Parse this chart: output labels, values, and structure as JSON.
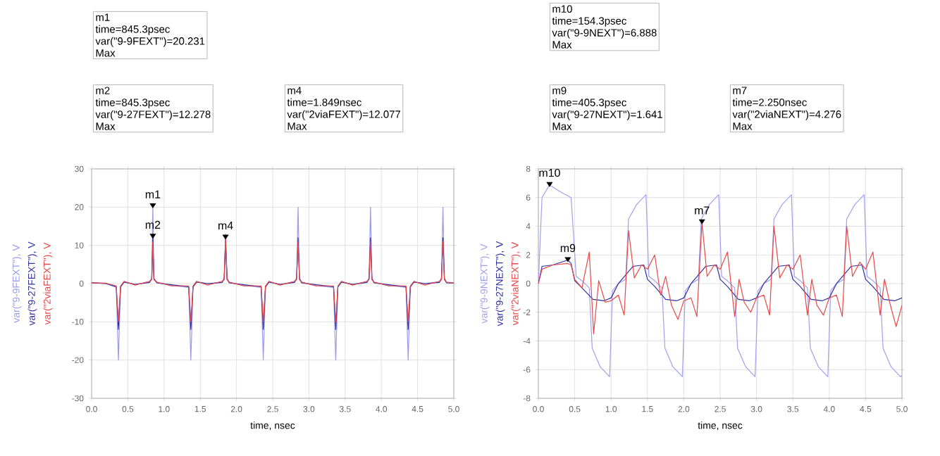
{
  "chart_data": [
    {
      "type": "line",
      "xlabel": "time, nsec",
      "xlim": [
        0,
        5
      ],
      "ylim": [
        -30,
        30
      ],
      "grid": true,
      "xticks": [
        {
          "value": 0,
          "label": "0.0"
        },
        {
          "value": 0.5,
          "label": "0.5"
        },
        {
          "value": 1,
          "label": "1.0"
        },
        {
          "value": 1.5,
          "label": "1.5"
        },
        {
          "value": 2,
          "label": "2.0"
        },
        {
          "value": 2.5,
          "label": "2.5"
        },
        {
          "value": 3,
          "label": "3.0"
        },
        {
          "value": 3.5,
          "label": "3.5"
        },
        {
          "value": 4,
          "label": "4.0"
        },
        {
          "value": 4.5,
          "label": "4.5"
        },
        {
          "value": 5,
          "label": "5.0"
        }
      ],
      "yticks": [
        -30,
        -20,
        -10,
        0,
        10,
        20,
        30
      ],
      "x": [
        0,
        0.2,
        0.34,
        0.37,
        0.4,
        0.45,
        0.6,
        0.8,
        0.83,
        0.8453,
        0.86,
        0.9,
        1.1,
        1.34,
        1.37,
        1.4,
        1.45,
        1.6,
        1.8,
        1.83,
        1.849,
        1.87,
        1.9,
        2.1,
        2.34,
        2.37,
        2.4,
        2.45,
        2.6,
        2.8,
        2.83,
        2.85,
        2.87,
        2.9,
        3.1,
        3.34,
        3.37,
        3.4,
        3.45,
        3.6,
        3.8,
        3.83,
        3.85,
        3.87,
        3.9,
        4.1,
        4.34,
        4.37,
        4.4,
        4.45,
        4.6,
        4.8,
        4.83,
        4.85,
        4.87,
        4.9,
        5.0
      ],
      "series": [
        {
          "name": "var(\"9-9FEXT\"), V",
          "color": "#9a9af0",
          "values": [
            0.3,
            0,
            -1,
            -20,
            -1,
            0.5,
            -0.3,
            0.5,
            1.5,
            20.231,
            1.5,
            0.3,
            -0.5,
            -1,
            -20,
            -1,
            0.5,
            0,
            0.3,
            1.5,
            13,
            1.5,
            0.3,
            -0.5,
            -1,
            -20,
            -1,
            0.5,
            -0.3,
            0.5,
            1.5,
            20,
            1.5,
            0.3,
            -0.6,
            -1,
            -20,
            -1,
            0.5,
            -0.2,
            0.5,
            1.5,
            20,
            1.5,
            0.3,
            -0.5,
            -1,
            -20,
            -1,
            0.5,
            0,
            0.5,
            1.5,
            20,
            1.5,
            0.3,
            0.2
          ]
        },
        {
          "name": "var(\"9-27FEXT\"), V",
          "color": "#3030a0",
          "values": [
            0.2,
            0,
            -0.8,
            -12,
            -0.8,
            0.4,
            -0.2,
            0.3,
            1.2,
            12.278,
            1.2,
            0.2,
            -0.3,
            -0.8,
            -12,
            -0.8,
            0.4,
            0,
            0.3,
            1.2,
            11,
            1.2,
            0.2,
            -0.3,
            -0.8,
            -12,
            -0.8,
            0.4,
            -0.2,
            0.3,
            1.2,
            12,
            1.2,
            0.2,
            -0.3,
            -0.8,
            -12,
            -0.8,
            0.4,
            -0.2,
            0.3,
            1.2,
            12,
            1.2,
            0.2,
            -0.3,
            -0.8,
            -12,
            -0.8,
            0.4,
            0,
            0.3,
            1.2,
            12,
            1.2,
            0.2,
            0.1
          ]
        },
        {
          "name": "var(\"2viaFEXT\"), V",
          "color": "#e84848",
          "values": [
            0.2,
            0.1,
            -0.6,
            -10,
            -0.6,
            0.6,
            -0.4,
            0.6,
            1,
            11,
            1,
            0.4,
            -0.6,
            -0.6,
            -10,
            -0.6,
            0.6,
            -0.4,
            0.6,
            1,
            12.077,
            1,
            0.4,
            -0.6,
            -0.6,
            -10,
            -0.6,
            0.6,
            -0.4,
            0.6,
            1,
            11,
            1,
            0.4,
            -0.6,
            -0.6,
            -10,
            -0.6,
            0.6,
            -0.4,
            0.6,
            1,
            11,
            1,
            0.4,
            -0.6,
            -0.6,
            -10,
            -0.6,
            0.6,
            -0.4,
            0.6,
            1,
            11,
            1,
            0.4,
            0.1
          ]
        }
      ],
      "annotations": [
        {
          "text": "m1",
          "x": 0.8453,
          "y": 20.231
        },
        {
          "text": "m2",
          "x": 0.8453,
          "y": 12.278
        },
        {
          "text": "m4",
          "x": 1.849,
          "y": 12.077
        },
        "m1",
        "time=845.3psec",
        "var(\"9-9FEXT\")=20.231",
        "Max",
        "m2",
        "time=845.3psec",
        "var(\"9-27FEXT\")=12.278",
        "Max",
        "m4",
        "time=1.849nsec",
        "var(\"2viaFEXT\")=12.077",
        "Max"
      ]
    },
    {
      "type": "line",
      "xlabel": "time, nsec",
      "xlim": [
        0,
        5
      ],
      "ylim": [
        -8,
        8
      ],
      "grid": true,
      "xticks": [
        {
          "value": 0,
          "label": "0.0"
        },
        {
          "value": 0.5,
          "label": "0.5"
        },
        {
          "value": 1,
          "label": "1.0"
        },
        {
          "value": 1.5,
          "label": "1.5"
        },
        {
          "value": 2,
          "label": "2.0"
        },
        {
          "value": 2.5,
          "label": "2.5"
        },
        {
          "value": 3,
          "label": "3.0"
        },
        {
          "value": 3.5,
          "label": "3.5"
        },
        {
          "value": 4,
          "label": "4.0"
        },
        {
          "value": 4.5,
          "label": "4.5"
        },
        {
          "value": 5,
          "label": "5.0"
        }
      ],
      "yticks": [
        -8,
        -6,
        -4,
        -2,
        0,
        2,
        4,
        6,
        8
      ],
      "series": [
        {
          "name": "var(\"9-9NEXT\"), V",
          "color": "#a0a0f0",
          "x": [
            0,
            0.05,
            0.1543,
            0.3,
            0.45,
            0.52,
            0.6,
            0.7,
            0.74,
            0.85,
            0.98,
            1.02,
            1.1,
            1.2,
            1.24,
            1.35,
            1.48,
            1.52,
            1.6,
            1.7,
            1.74,
            1.85,
            1.98,
            2.02,
            2.1,
            2.2,
            2.24,
            2.35,
            2.48,
            2.52,
            2.6,
            2.7,
            2.74,
            2.85,
            2.98,
            3.02,
            3.1,
            3.2,
            3.24,
            3.35,
            3.48,
            3.52,
            3.6,
            3.7,
            3.74,
            3.85,
            3.98,
            4.02,
            4.1,
            4.2,
            4.24,
            4.35,
            4.48,
            4.52,
            4.6,
            4.7,
            4.74,
            4.85,
            4.98,
            5.0
          ],
          "values": [
            0,
            6,
            6.888,
            6.4,
            6,
            0.5,
            0.2,
            -0.3,
            -4.5,
            -5.8,
            -6.5,
            -0.5,
            0,
            0.3,
            4.5,
            5.5,
            6.2,
            0.5,
            0.2,
            -0.3,
            -4.5,
            -5.8,
            -6.5,
            -0.5,
            0,
            0.3,
            4.5,
            5.5,
            6.2,
            0.5,
            0.2,
            -0.3,
            -4.5,
            -5.8,
            -6.5,
            -0.5,
            0,
            0.3,
            4.5,
            5.5,
            6.2,
            0.5,
            0.2,
            -0.3,
            -4.5,
            -5.8,
            -6.5,
            -0.5,
            0,
            0.3,
            4.5,
            5.5,
            6.2,
            0.5,
            0.2,
            -0.3,
            -4.5,
            -5.8,
            -6.5,
            -6.4
          ]
        },
        {
          "name": "var(\"9-27NEXT\"), V",
          "color": "#3030a0",
          "x": [
            0,
            0.05,
            0.2,
            0.4053,
            0.45,
            0.5,
            0.6,
            0.75,
            0.9,
            1.0,
            1.1,
            1.3,
            1.45,
            1.5,
            1.6,
            1.75,
            1.9,
            2.0,
            2.1,
            2.3,
            2.45,
            2.5,
            2.6,
            2.75,
            2.9,
            3.0,
            3.1,
            3.3,
            3.45,
            3.5,
            3.6,
            3.75,
            3.9,
            4.0,
            4.1,
            4.3,
            4.45,
            4.5,
            4.6,
            4.75,
            4.9,
            5.0
          ],
          "values": [
            0,
            1.2,
            1.3,
            1.641,
            1.4,
            0.2,
            -0.3,
            -1.1,
            -1.2,
            -1,
            0,
            1.2,
            1.3,
            0.3,
            -0.2,
            -1.1,
            -1.2,
            -1,
            0,
            1.2,
            1.3,
            0.3,
            -0.2,
            -1.1,
            -1.2,
            -1,
            0,
            1.2,
            1.3,
            0.3,
            -0.2,
            -1.1,
            -1.2,
            -1,
            0,
            1.2,
            1.3,
            0.3,
            -0.2,
            -1.1,
            -1.2,
            -1
          ]
        },
        {
          "name": "var(\"2viaNEXT\"), V",
          "color": "#e84848",
          "x": [
            0,
            0.05,
            0.2,
            0.4,
            0.45,
            0.5,
            0.6,
            0.7,
            0.76,
            0.83,
            0.92,
            1.0,
            1.1,
            1.18,
            1.24,
            1.32,
            1.42,
            1.5,
            1.6,
            1.68,
            1.75,
            1.83,
            1.92,
            2.0,
            2.1,
            2.18,
            2.25,
            2.32,
            2.42,
            2.5,
            2.6,
            2.7,
            2.76,
            2.83,
            2.92,
            3.0,
            3.1,
            3.18,
            3.24,
            3.32,
            3.42,
            3.5,
            3.6,
            3.7,
            3.76,
            3.83,
            3.92,
            4.0,
            4.1,
            4.18,
            4.24,
            4.32,
            4.42,
            4.5,
            4.6,
            4.7,
            4.76,
            4.83,
            4.92,
            5.0
          ],
          "values": [
            0,
            1.0,
            1.3,
            1.4,
            1.3,
            0.3,
            -0.3,
            2.2,
            -3.5,
            0.2,
            -1.3,
            -1.2,
            -0.8,
            -2.2,
            3.7,
            0.4,
            1.3,
            1,
            2,
            -0.8,
            0.5,
            -1.5,
            -2.5,
            -1.2,
            -1,
            -2.3,
            4.276,
            0.5,
            1.3,
            1,
            2.2,
            -2.3,
            0.3,
            -1.3,
            -2,
            -1,
            -0.8,
            -2.2,
            4,
            0.4,
            1.3,
            1,
            2,
            -2.2,
            0.3,
            -1.5,
            -2.2,
            -1,
            -0.8,
            -2.3,
            4,
            0.5,
            1.5,
            1,
            2.2,
            -2.2,
            0.3,
            -1.3,
            -3,
            -1.5
          ]
        }
      ],
      "annotations": [
        {
          "text": "m10",
          "x": 0.1543,
          "y": 6.888
        },
        {
          "text": "m9",
          "x": 0.4053,
          "y": 1.641
        },
        {
          "text": "m7",
          "x": 2.25,
          "y": 4.276
        },
        "m10",
        "time=154.3psec",
        "var(\"9-9NEXT\")=6.888",
        "Max",
        "m9",
        "time=405.3psec",
        "var(\"9-27NEXT\")=1.641",
        "Max",
        "m7",
        "time=2.250nsec",
        "var(\"2viaNEXT\")=4.276",
        "Max"
      ]
    }
  ]
}
